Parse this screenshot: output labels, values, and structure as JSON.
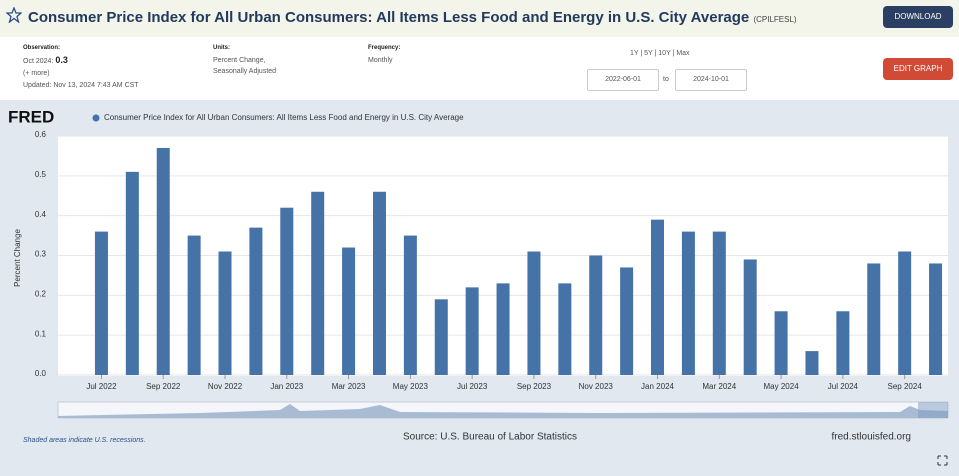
{
  "header": {
    "title": "Consumer Price Index for All Urban Consumers: All Items Less Food and Energy in U.S. City Average",
    "series_id": "(CPILFESL)",
    "download": "DOWNLOAD"
  },
  "info": {
    "observation_label": "Observation:",
    "date": "Oct 2024:",
    "value": "0.3",
    "more": "(+ more)",
    "updated": "Updated: Nov 13, 2024 7:43 AM CST",
    "units_label": "Units:",
    "units": [
      "Percent Change,",
      "Seasonally Adjusted"
    ],
    "frequency_label": "Frequency:",
    "frequency": "Monthly",
    "ranges": "1Y | 5Y | 10Y | Max",
    "start": "2022-06-01",
    "to": "to",
    "end": "2024-10-01",
    "edit": "EDIT GRAPH"
  },
  "chart_data": {
    "type": "bar",
    "logo": "FRED",
    "ylabel": "Percent Change",
    "color": "#4572a7",
    "grid": true,
    "series": [
      {
        "name": "Consumer Price Index for All Urban Consumers: All Items Less Food and Energy in U.S. City Average",
        "color": "#4572a7",
        "values": [
          0.36,
          0.51,
          0.57,
          0.35,
          0.31,
          0.37,
          0.42,
          0.46,
          0.32,
          0.46,
          0.35,
          0.19,
          0.22,
          0.23,
          0.31,
          0.23,
          0.3,
          0.27,
          0.39,
          0.36,
          0.36,
          0.29,
          0.16,
          0.06,
          0.16,
          0.28,
          0.31,
          0.28
        ]
      }
    ],
    "categories": [
      "Jul 2022",
      null,
      "Sep 2022",
      null,
      "Nov 2022",
      null,
      "Jan 2023",
      null,
      "Mar 2023",
      null,
      "May 2023",
      null,
      "Jul 2023",
      null,
      "Sep 2023",
      null,
      "Nov 2023",
      null,
      "Jan 2024",
      null,
      "Mar 2024",
      null,
      "May 2024",
      null,
      "Jul 2024",
      null,
      "Sep 2024",
      null
    ],
    "ylim": [
      0,
      0.6
    ],
    "yticks": [
      {
        "value": 0,
        "label": "0.0"
      },
      0.1,
      0.2,
      0.3,
      0.4,
      0.5,
      0.6
    ]
  },
  "footer": {
    "note": "Shaded areas indicate U.S. recessions.",
    "source": "Source: U.S. Bureau of Labor Statistics",
    "site": "fred.stlouisfed.org"
  }
}
